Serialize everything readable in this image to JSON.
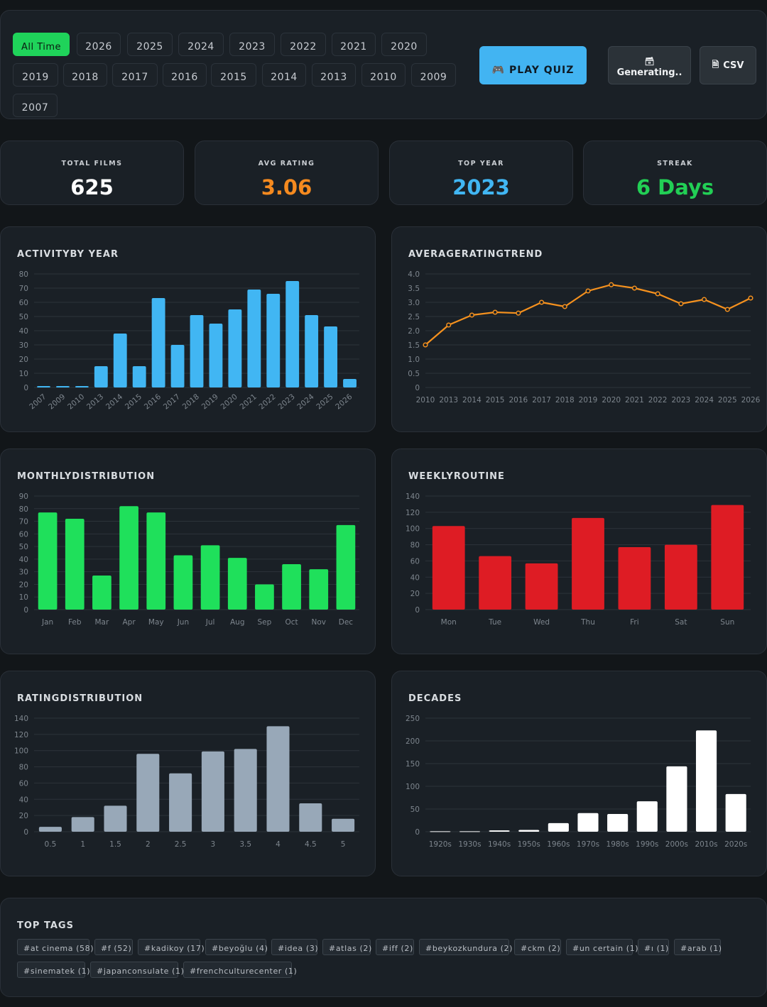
{
  "filters": {
    "years": [
      "All Time",
      "2026",
      "2025",
      "2024",
      "2023",
      "2022",
      "2021",
      "2020",
      "2019",
      "2018",
      "2017",
      "2016",
      "2015",
      "2014",
      "2013",
      "2010",
      "2009",
      "2007"
    ],
    "active": "All Time",
    "play_quiz_label": "PLAY QUIZ",
    "generating_label": "Generating..",
    "csv_label": "CSV"
  },
  "stats": [
    {
      "label": "TOTAL FILMS",
      "value": "625",
      "color": "#ffffff"
    },
    {
      "label": "AVG RATING",
      "value": "3.06",
      "color": "#f58a1f"
    },
    {
      "label": "TOP YEAR",
      "value": "2023",
      "color": "#41b6f3"
    },
    {
      "label": "STREAK",
      "value": "6 Days",
      "color": "#22cf55"
    }
  ],
  "chart_data": [
    {
      "id": "activity",
      "type": "bar",
      "title": "ACTIVITYBY YEAR",
      "color": "#41b6f3",
      "ylim": [
        0,
        80
      ],
      "yticks": [
        0,
        10,
        20,
        30,
        40,
        50,
        60,
        70,
        80
      ],
      "rotate_labels": true,
      "categories": [
        "2007",
        "2009",
        "2010",
        "2013",
        "2014",
        "2015",
        "2016",
        "2017",
        "2018",
        "2019",
        "2020",
        "2021",
        "2022",
        "2023",
        "2024",
        "2025",
        "2026"
      ],
      "values": [
        1,
        1,
        1,
        15,
        38,
        15,
        63,
        30,
        51,
        45,
        55,
        69,
        66,
        75,
        51,
        43,
        6
      ]
    },
    {
      "id": "rating-trend",
      "type": "line",
      "title": "AVERAGERATINGTREND",
      "color": "#f5911e",
      "ylim": [
        0,
        4
      ],
      "yticks": [
        0,
        0.5,
        1.0,
        1.5,
        2.0,
        2.5,
        3.0,
        3.5,
        4.0
      ],
      "categories": [
        "2010",
        "2013",
        "2014",
        "2015",
        "2016",
        "2017",
        "2018",
        "2019",
        "2020",
        "2021",
        "2022",
        "2023",
        "2024",
        "2025",
        "2026"
      ],
      "values": [
        1.5,
        2.2,
        2.55,
        2.65,
        2.62,
        3.0,
        2.85,
        3.4,
        3.62,
        3.5,
        3.3,
        2.95,
        3.1,
        2.75,
        3.15
      ]
    },
    {
      "id": "monthly",
      "type": "bar",
      "title": "MONTHLYDISTRIBUTION",
      "color": "#1fe05b",
      "ylim": [
        0,
        90
      ],
      "yticks": [
        0,
        10,
        20,
        30,
        40,
        50,
        60,
        70,
        80,
        90
      ],
      "categories": [
        "Jan",
        "Feb",
        "Mar",
        "Apr",
        "May",
        "Jun",
        "Jul",
        "Aug",
        "Sep",
        "Oct",
        "Nov",
        "Dec"
      ],
      "values": [
        77,
        72,
        27,
        82,
        77,
        43,
        51,
        41,
        20,
        36,
        32,
        67
      ]
    },
    {
      "id": "weekly",
      "type": "bar",
      "title": "WEEKLYROUTINE",
      "color": "#de1c24",
      "ylim": [
        0,
        140
      ],
      "yticks": [
        0,
        20,
        40,
        60,
        80,
        100,
        120,
        140
      ],
      "categories": [
        "Mon",
        "Tue",
        "Wed",
        "Thu",
        "Fri",
        "Sat",
        "Sun"
      ],
      "values": [
        103,
        66,
        57,
        113,
        77,
        80,
        129
      ]
    },
    {
      "id": "rating-dist",
      "type": "bar",
      "title": "RATINGDISTRIBUTION",
      "color": "#98a8b8",
      "ylim": [
        0,
        140
      ],
      "yticks": [
        0,
        20,
        40,
        60,
        80,
        100,
        120,
        140
      ],
      "categories": [
        "0.5",
        "1",
        "1.5",
        "2",
        "2.5",
        "3",
        "3.5",
        "4",
        "4.5",
        "5"
      ],
      "values": [
        6,
        18,
        32,
        96,
        72,
        99,
        102,
        130,
        35,
        16
      ]
    },
    {
      "id": "decades",
      "type": "bar",
      "title": "DECADES",
      "color": "#ffffff",
      "ylim": [
        0,
        250
      ],
      "yticks": [
        0,
        50,
        100,
        150,
        200,
        250
      ],
      "categories": [
        "1920s",
        "1930s",
        "1940s",
        "1950s",
        "1960s",
        "1970s",
        "1980s",
        "1990s",
        "2000s",
        "2010s",
        "2020s"
      ],
      "values": [
        1,
        1,
        3,
        4,
        19,
        41,
        39,
        67,
        144,
        223,
        83
      ]
    }
  ],
  "tags": {
    "title": "TOP TAGS",
    "items": [
      "#at cinema (58)",
      "#f (52)",
      "#kadikoy (17)",
      "#beyoğlu (4)",
      "#idea (3)",
      "#atlas (2)",
      "#iff (2)",
      "#beykozkundura (2)",
      "#ckm (2)",
      "#un certain (1)",
      "#ı (1)",
      "#arab (1)",
      "#sinematek (1)",
      "#japanconsulate (1)",
      "#frenchculturecenter (1)"
    ]
  }
}
